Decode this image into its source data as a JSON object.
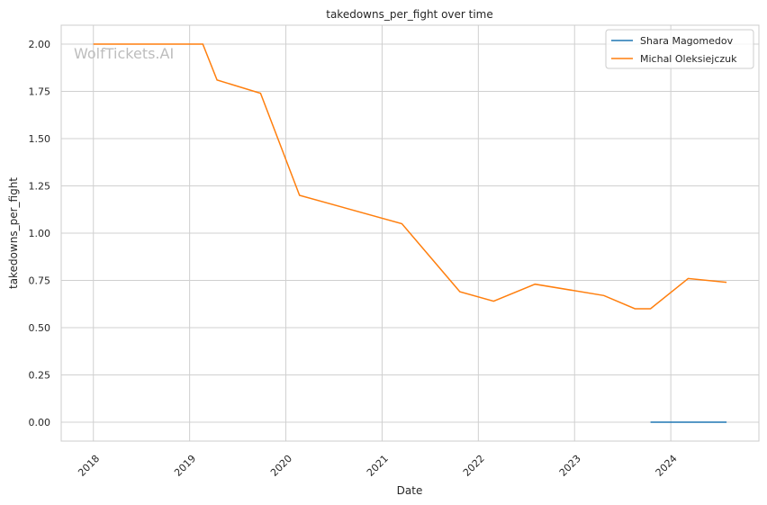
{
  "chart_data": {
    "type": "line",
    "title": "takedowns_per_fight over time",
    "xlabel": "Date",
    "ylabel": "takedowns_per_fight",
    "watermark": "WolfTickets.AI",
    "xlim": [
      "2017-09-01",
      "2024-12-01"
    ],
    "ylim": [
      -0.1,
      2.1
    ],
    "x_ticks": [
      "2018",
      "2019",
      "2020",
      "2021",
      "2022",
      "2023",
      "2024"
    ],
    "y_ticks": [
      "0.00",
      "0.25",
      "0.50",
      "0.75",
      "1.00",
      "1.25",
      "1.50",
      "1.75",
      "2.00"
    ],
    "grid": true,
    "legend_position": "top-right",
    "series": [
      {
        "name": "Shara Magomedov",
        "color": "#1f77b4",
        "x": [
          "2023-10-16",
          "2024-03-07",
          "2024-07-31"
        ],
        "y": [
          0,
          0,
          0
        ]
      },
      {
        "name": "Michal Oleksiejczuk",
        "color": "#ff7f0e",
        "x": [
          "2018-01-01",
          "2019-02-20",
          "2019-04-15",
          "2019-09-27",
          "2020-02-22",
          "2021-03-17",
          "2021-10-23",
          "2022-02-28",
          "2022-08-04",
          "2023-04-22",
          "2023-08-18",
          "2023-10-16",
          "2024-03-07",
          "2024-07-31"
        ],
        "y": [
          2.0,
          2.0,
          1.81,
          1.74,
          1.2,
          1.05,
          0.69,
          0.64,
          0.73,
          0.67,
          0.6,
          0.6,
          0.76,
          0.74
        ]
      }
    ]
  }
}
